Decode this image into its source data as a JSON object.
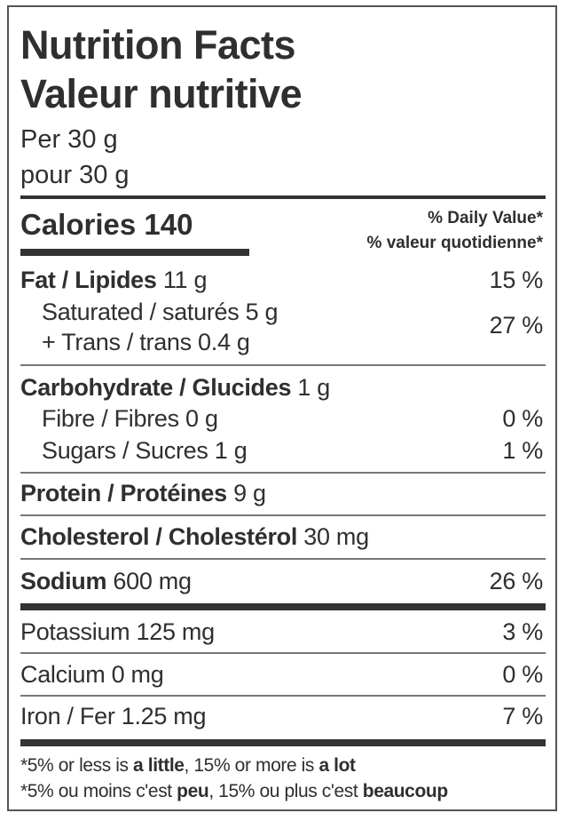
{
  "title_en": "Nutrition Facts",
  "title_fr": "Valeur nutritive",
  "serving_en": "Per 30 g",
  "serving_fr": "pour 30 g",
  "calories": {
    "label": "Calories",
    "value": "140"
  },
  "daily_value_en": "% Daily Value*",
  "daily_value_fr": "% valeur quotidienne*",
  "rows": {
    "fat": {
      "label": "Fat / Lipides",
      "amount": "11 g",
      "dv": "15 %"
    },
    "saturated": {
      "label": "Saturated / saturés 5 g"
    },
    "trans": {
      "label": "+ Trans / trans 0.4 g",
      "dv": "27 %"
    },
    "carb": {
      "label": "Carbohydrate / Glucides",
      "amount": "1 g"
    },
    "fibre": {
      "label": "Fibre / Fibres 0 g",
      "dv": "0 %"
    },
    "sugars": {
      "label": "Sugars / Sucres 1 g",
      "dv": "1 %"
    },
    "protein": {
      "label": "Protein / Protéines",
      "amount": "9 g"
    },
    "cholesterol": {
      "label": "Cholesterol / Cholestérol",
      "amount": "30 mg"
    },
    "sodium": {
      "label": "Sodium",
      "amount": "600 mg",
      "dv": "26 %"
    },
    "potassium": {
      "label": "Potassium 125 mg",
      "dv": "3 %"
    },
    "calcium": {
      "label": "Calcium 0 mg",
      "dv": "0 %"
    },
    "iron": {
      "label": "Iron / Fer 1.25 mg",
      "dv": "7 %"
    }
  },
  "footnote_en": {
    "a": "*5% or less is ",
    "b": "a little",
    "c": ", 15% or more is ",
    "d": "a lot"
  },
  "footnote_fr": {
    "a": "*5% ou moins c'est ",
    "b": "peu",
    "c": ", 15% ou plus c'est ",
    "d": "beaucoup"
  }
}
